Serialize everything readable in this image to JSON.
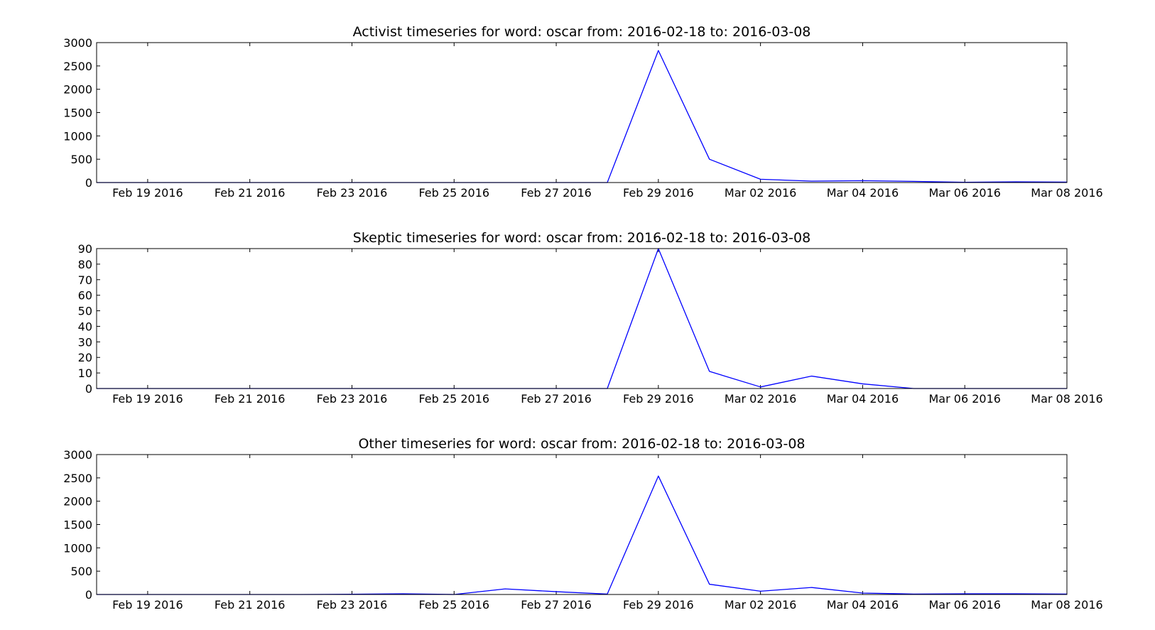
{
  "chart_data": [
    {
      "type": "line",
      "title": "Activist timeseries for word: oscar from: 2016-02-18 to: 2016-03-08",
      "x": [
        "2016-02-18",
        "2016-02-19",
        "2016-02-20",
        "2016-02-21",
        "2016-02-22",
        "2016-02-23",
        "2016-02-24",
        "2016-02-25",
        "2016-02-26",
        "2016-02-27",
        "2016-02-28",
        "2016-02-29",
        "2016-03-01",
        "2016-03-02",
        "2016-03-03",
        "2016-03-04",
        "2016-03-05",
        "2016-03-06",
        "2016-03-07",
        "2016-03-08"
      ],
      "values": [
        0,
        0,
        0,
        0,
        0,
        0,
        0,
        0,
        0,
        0,
        0,
        2830,
        500,
        70,
        30,
        40,
        25,
        5,
        15,
        10
      ],
      "xlim": [
        "2016-02-18",
        "2016-03-08"
      ],
      "ylim": [
        0,
        3000
      ],
      "yticks": [
        0,
        500,
        1000,
        1500,
        2000,
        2500,
        3000
      ],
      "xtick_labels": [
        "Feb 19 2016",
        "Feb 21 2016",
        "Feb 23 2016",
        "Feb 25 2016",
        "Feb 27 2016",
        "Feb 29 2016",
        "Mar 02 2016",
        "Mar 04 2016",
        "Mar 06 2016",
        "Mar 08 2016"
      ],
      "grid": false,
      "color": "#0000ff"
    },
    {
      "type": "line",
      "title": "Skeptic timeseries for word: oscar from: 2016-02-18 to: 2016-03-08",
      "x": [
        "2016-02-18",
        "2016-02-19",
        "2016-02-20",
        "2016-02-21",
        "2016-02-22",
        "2016-02-23",
        "2016-02-24",
        "2016-02-25",
        "2016-02-26",
        "2016-02-27",
        "2016-02-28",
        "2016-02-29",
        "2016-03-01",
        "2016-03-02",
        "2016-03-03",
        "2016-03-04",
        "2016-03-05",
        "2016-03-06",
        "2016-03-07",
        "2016-03-08"
      ],
      "values": [
        0,
        0,
        0,
        0,
        0,
        0,
        0,
        0,
        0,
        0,
        0,
        90,
        11,
        1,
        8,
        3,
        0,
        0,
        0,
        0
      ],
      "xlim": [
        "2016-02-18",
        "2016-03-08"
      ],
      "ylim": [
        0,
        90
      ],
      "yticks": [
        0,
        10,
        20,
        30,
        40,
        50,
        60,
        70,
        80,
        90
      ],
      "xtick_labels": [
        "Feb 19 2016",
        "Feb 21 2016",
        "Feb 23 2016",
        "Feb 25 2016",
        "Feb 27 2016",
        "Feb 29 2016",
        "Mar 02 2016",
        "Mar 04 2016",
        "Mar 06 2016",
        "Mar 08 2016"
      ],
      "grid": false,
      "color": "#0000ff"
    },
    {
      "type": "line",
      "title": "Other timeseries for word: oscar from: 2016-02-18 to: 2016-03-08",
      "x": [
        "2016-02-18",
        "2016-02-19",
        "2016-02-20",
        "2016-02-21",
        "2016-02-22",
        "2016-02-23",
        "2016-02-24",
        "2016-02-25",
        "2016-02-26",
        "2016-02-27",
        "2016-02-28",
        "2016-02-29",
        "2016-03-01",
        "2016-03-02",
        "2016-03-03",
        "2016-03-04",
        "2016-03-05",
        "2016-03-06",
        "2016-03-07",
        "2016-03-08"
      ],
      "values": [
        0,
        0,
        0,
        0,
        0,
        5,
        15,
        0,
        120,
        60,
        10,
        2540,
        220,
        70,
        150,
        30,
        10,
        15,
        15,
        10
      ],
      "xlim": [
        "2016-02-18",
        "2016-03-08"
      ],
      "ylim": [
        0,
        3000
      ],
      "yticks": [
        0,
        500,
        1000,
        1500,
        2000,
        2500,
        3000
      ],
      "xtick_labels": [
        "Feb 19 2016",
        "Feb 21 2016",
        "Feb 23 2016",
        "Feb 25 2016",
        "Feb 27 2016",
        "Feb 29 2016",
        "Mar 02 2016",
        "Mar 04 2016",
        "Mar 06 2016",
        "Mar 08 2016"
      ],
      "grid": false,
      "color": "#0000ff"
    }
  ]
}
